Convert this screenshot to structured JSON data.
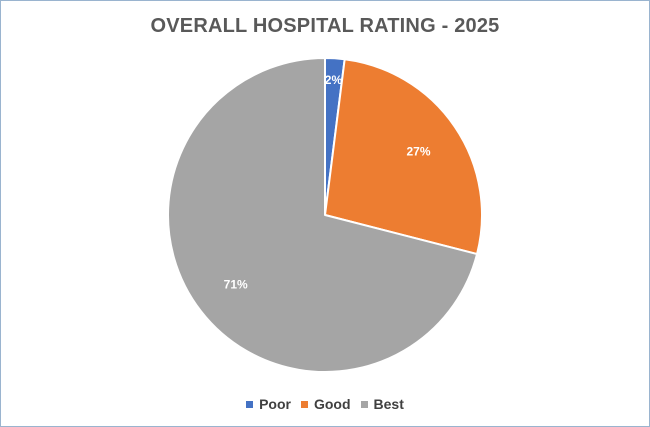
{
  "chart_data": {
    "type": "pie",
    "title": "OVERALL HOSPITAL RATING - 2025",
    "categories": [
      "Poor",
      "Good",
      "Best"
    ],
    "values": [
      2,
      27,
      71
    ],
    "data_labels": [
      "2%",
      "27%",
      "71%"
    ],
    "colors": [
      "#4472c4",
      "#ed7d31",
      "#a5a5a5"
    ],
    "legend_position": "bottom"
  }
}
